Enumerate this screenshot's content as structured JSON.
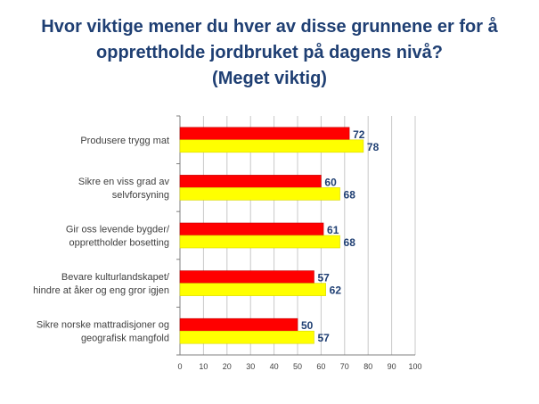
{
  "title": {
    "line1": "Hvor viktige mener du hver av disse grunnene er for å",
    "line2": "opprettholde jordbruket på dagens nivå?",
    "line3": "(Meget viktig)"
  },
  "chart_data": {
    "type": "bar",
    "orientation": "horizontal",
    "title": "Hvor viktige mener du hver av disse grunnene er for å opprettholde jordbruket på dagens nivå? (Meget viktig)",
    "categories": [
      [
        "Produsere trygg mat"
      ],
      [
        "Sikre en viss grad av",
        "selvforsyning"
      ],
      [
        "Gir oss levende bygder/",
        "opprettholder bosetting"
      ],
      [
        "Bevare kulturlandskapet/",
        "hindre at åker og eng gror igjen"
      ],
      [
        "Sikre norske mattradisjoner og",
        "geografisk mangfold"
      ]
    ],
    "series": [
      {
        "values": [
          72,
          60,
          61,
          57,
          50
        ],
        "color": "#ff0000"
      },
      {
        "values": [
          78,
          68,
          68,
          62,
          57
        ],
        "color": "#ffff00"
      }
    ],
    "xlim": [
      0,
      100
    ],
    "xticks": [
      0,
      10,
      20,
      30,
      40,
      50,
      60,
      70,
      80,
      90,
      100
    ],
    "grid": true,
    "legend": "none"
  }
}
